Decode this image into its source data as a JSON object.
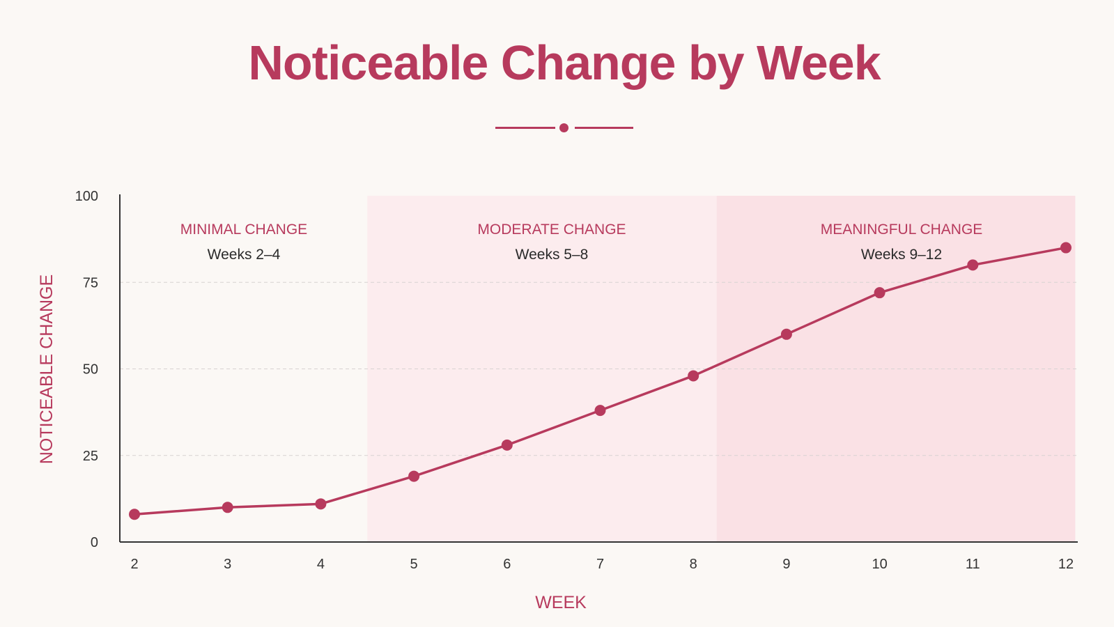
{
  "title": "Noticeable Change by Week",
  "colors": {
    "accent": "#b73a5d",
    "background": "#fbf8f5",
    "zone_moderate": "#fcecee",
    "zone_meaningful": "#fae1e5",
    "grid": "#d8d2d2"
  },
  "chart_data": {
    "type": "line",
    "xlabel": "WEEK",
    "ylabel": "NOTICEABLE CHANGE",
    "x": [
      2,
      3,
      4,
      5,
      6,
      7,
      8,
      9,
      10,
      11,
      12
    ],
    "y": [
      8,
      10,
      11,
      19,
      28,
      38,
      48,
      60,
      72,
      80,
      85
    ],
    "ylim": [
      0,
      100
    ],
    "yticks": [
      0,
      25,
      50,
      75,
      100
    ],
    "xticks": [
      2,
      3,
      4,
      5,
      6,
      7,
      8,
      9,
      10,
      11,
      12
    ],
    "grid": "horizontal dashed at 25, 50, 75",
    "zones": [
      {
        "label": "MINIMAL CHANGE",
        "sublabel": "Weeks 2–4",
        "x_start": 2,
        "x_end": 4.5
      },
      {
        "label": "MODERATE CHANGE",
        "sublabel": "Weeks 5–8",
        "x_start": 4.5,
        "x_end": 8.25
      },
      {
        "label": "MEANINGFUL CHANGE",
        "sublabel": "Weeks 9–12",
        "x_start": 8.25,
        "x_end": 12.1
      }
    ]
  }
}
